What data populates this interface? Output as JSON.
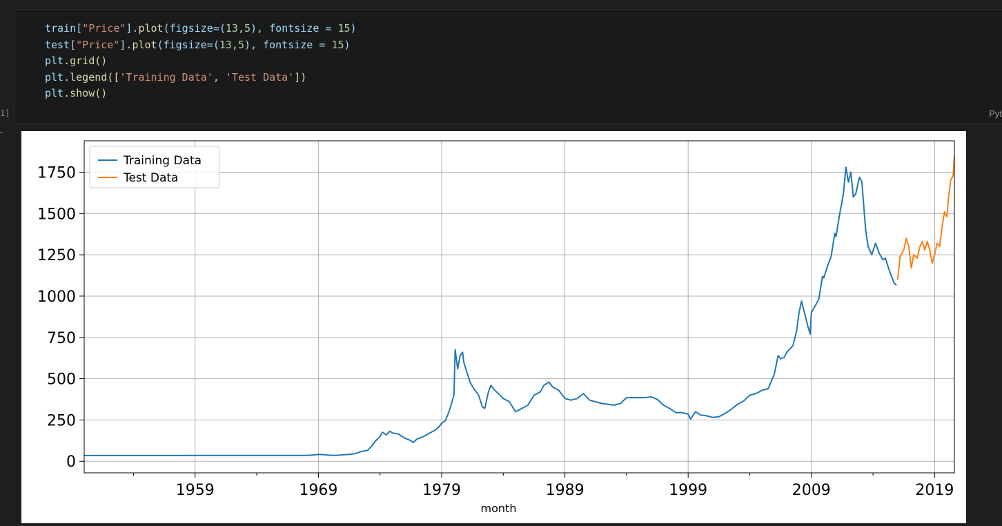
{
  "notebook": {
    "code_lines": [
      "train[\"Price\"].plot(figsize=(13,5), fontsize = 15)",
      "test[\"Price\"].plot(figsize=(13,5), fontsize = 15)",
      "plt.grid()",
      "plt.legend(['Training Data', 'Test Data'])",
      "plt.show()"
    ],
    "exec_count": "1]",
    "language_label": "Pyt"
  },
  "colors": {
    "training": "#1f77b4",
    "test": "#ff7f0e",
    "grid": "#b0b0b0"
  },
  "chart_data": {
    "type": "line",
    "title": "",
    "xlabel": "month",
    "ylabel": "",
    "xlim": [
      1950,
      2020.6
    ],
    "ylim": [
      -70,
      1940
    ],
    "xticks": [
      1959,
      1969,
      1979,
      1989,
      1999,
      2009,
      2019
    ],
    "yticks": [
      0,
      250,
      500,
      750,
      1000,
      1250,
      1500,
      1750
    ],
    "grid": true,
    "legend_position": "top-left",
    "legend": [
      "Training Data",
      "Test Data"
    ],
    "series": [
      {
        "name": "Training Data",
        "points": [
          [
            1950,
            34.7
          ],
          [
            1960,
            35.3
          ],
          [
            1965,
            35.1
          ],
          [
            1968,
            35.5
          ],
          [
            1968.5,
            38
          ],
          [
            1969,
            42
          ],
          [
            1969.5,
            40
          ],
          [
            1970,
            36
          ],
          [
            1970.5,
            36
          ],
          [
            1971,
            39
          ],
          [
            1971.5,
            42
          ],
          [
            1972,
            46
          ],
          [
            1972.5,
            60
          ],
          [
            1973,
            66
          ],
          [
            1973.3,
            90
          ],
          [
            1973.6,
            120
          ],
          [
            1974,
            150
          ],
          [
            1974.2,
            176
          ],
          [
            1974.5,
            160
          ],
          [
            1974.8,
            182
          ],
          [
            1975,
            172
          ],
          [
            1975.5,
            165
          ],
          [
            1976,
            140
          ],
          [
            1976.5,
            125
          ],
          [
            1976.7,
            113
          ],
          [
            1977,
            135
          ],
          [
            1977.5,
            148
          ],
          [
            1978,
            170
          ],
          [
            1978.5,
            190
          ],
          [
            1978.8,
            210
          ],
          [
            1979,
            230
          ],
          [
            1979.3,
            245
          ],
          [
            1979.6,
            300
          ],
          [
            1980,
            400
          ],
          [
            1980.1,
            675
          ],
          [
            1980.3,
            560
          ],
          [
            1980.5,
            640
          ],
          [
            1980.7,
            660
          ],
          [
            1980.8,
            600
          ],
          [
            1981,
            550
          ],
          [
            1981.3,
            480
          ],
          [
            1981.6,
            440
          ],
          [
            1981.8,
            420
          ],
          [
            1982,
            400
          ],
          [
            1982.3,
            330
          ],
          [
            1982.5,
            320
          ],
          [
            1982.8,
            420
          ],
          [
            1983,
            460
          ],
          [
            1983.3,
            430
          ],
          [
            1983.6,
            410
          ],
          [
            1984,
            380
          ],
          [
            1984.5,
            360
          ],
          [
            1985,
            300
          ],
          [
            1985.5,
            320
          ],
          [
            1986,
            340
          ],
          [
            1986.5,
            400
          ],
          [
            1987,
            420
          ],
          [
            1987.3,
            460
          ],
          [
            1987.7,
            480
          ],
          [
            1988,
            450
          ],
          [
            1988.5,
            430
          ],
          [
            1989,
            380
          ],
          [
            1989.5,
            370
          ],
          [
            1990,
            380
          ],
          [
            1990.5,
            410
          ],
          [
            1991,
            370
          ],
          [
            1991.5,
            360
          ],
          [
            1992,
            350
          ],
          [
            1992.5,
            345
          ],
          [
            1993,
            340
          ],
          [
            1993.5,
            350
          ],
          [
            1994,
            385
          ],
          [
            1994.5,
            385
          ],
          [
            1995,
            385
          ],
          [
            1995.5,
            385
          ],
          [
            1996,
            390
          ],
          [
            1996.5,
            375
          ],
          [
            1997,
            340
          ],
          [
            1997.5,
            320
          ],
          [
            1998,
            295
          ],
          [
            1998.5,
            295
          ],
          [
            1999,
            285
          ],
          [
            1999.2,
            255
          ],
          [
            1999.6,
            300
          ],
          [
            1999.8,
            290
          ],
          [
            2000,
            280
          ],
          [
            2000.5,
            275
          ],
          [
            2001,
            265
          ],
          [
            2001.5,
            270
          ],
          [
            2002,
            290
          ],
          [
            2002.5,
            315
          ],
          [
            2003,
            345
          ],
          [
            2003.5,
            365
          ],
          [
            2004,
            400
          ],
          [
            2004.5,
            410
          ],
          [
            2005,
            430
          ],
          [
            2005.5,
            440
          ],
          [
            2006,
            530
          ],
          [
            2006.3,
            640
          ],
          [
            2006.5,
            620
          ],
          [
            2006.8,
            630
          ],
          [
            2007,
            660
          ],
          [
            2007.5,
            700
          ],
          [
            2007.8,
            790
          ],
          [
            2008,
            900
          ],
          [
            2008.2,
            970
          ],
          [
            2008.5,
            880
          ],
          [
            2008.7,
            820
          ],
          [
            2008.9,
            770
          ],
          [
            2009,
            900
          ],
          [
            2009.3,
            940
          ],
          [
            2009.6,
            980
          ],
          [
            2009.9,
            1120
          ],
          [
            2010,
            1110
          ],
          [
            2010.3,
            1180
          ],
          [
            2010.6,
            1240
          ],
          [
            2010.9,
            1380
          ],
          [
            2011,
            1360
          ],
          [
            2011.3,
            1500
          ],
          [
            2011.6,
            1620
          ],
          [
            2011.8,
            1780
          ],
          [
            2012,
            1690
          ],
          [
            2012.2,
            1750
          ],
          [
            2012.4,
            1600
          ],
          [
            2012.6,
            1620
          ],
          [
            2012.9,
            1720
          ],
          [
            2013.1,
            1690
          ],
          [
            2013.4,
            1400
          ],
          [
            2013.6,
            1300
          ],
          [
            2013.9,
            1250
          ],
          [
            2014.2,
            1320
          ],
          [
            2014.5,
            1260
          ],
          [
            2014.8,
            1220
          ],
          [
            2015,
            1230
          ],
          [
            2015.3,
            1160
          ],
          [
            2015.5,
            1120
          ],
          [
            2015.7,
            1080
          ],
          [
            2015.9,
            1065
          ]
        ]
      },
      {
        "name": "Test Data",
        "points": [
          [
            2016,
            1100
          ],
          [
            2016.2,
            1240
          ],
          [
            2016.5,
            1280
          ],
          [
            2016.7,
            1350
          ],
          [
            2016.9,
            1300
          ],
          [
            2017.1,
            1170
          ],
          [
            2017.3,
            1250
          ],
          [
            2017.6,
            1230
          ],
          [
            2017.8,
            1300
          ],
          [
            2018,
            1330
          ],
          [
            2018.2,
            1280
          ],
          [
            2018.4,
            1330
          ],
          [
            2018.6,
            1280
          ],
          [
            2018.8,
            1200
          ],
          [
            2019,
            1250
          ],
          [
            2019.2,
            1320
          ],
          [
            2019.4,
            1300
          ],
          [
            2019.6,
            1420
          ],
          [
            2019.8,
            1510
          ],
          [
            2020,
            1480
          ],
          [
            2020.1,
            1580
          ],
          [
            2020.3,
            1700
          ],
          [
            2020.5,
            1730
          ],
          [
            2020.6,
            1850
          ]
        ]
      }
    ]
  }
}
